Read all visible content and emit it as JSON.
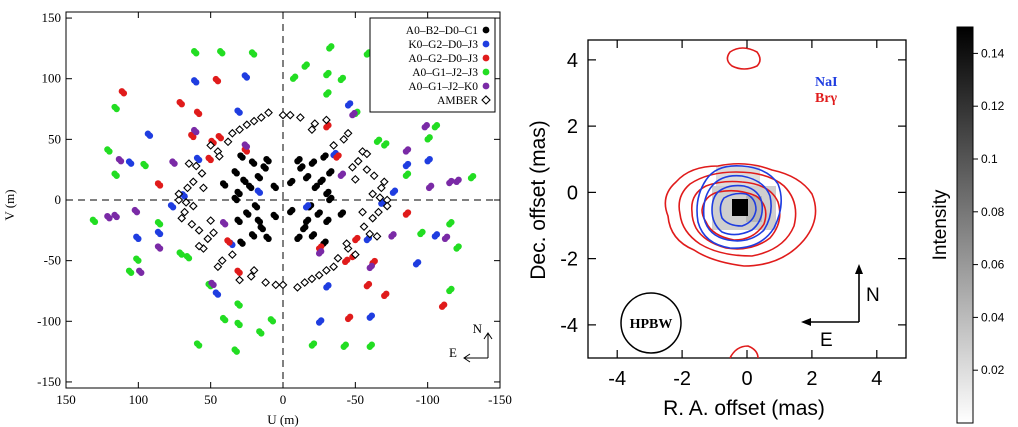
{
  "uv_plot": {
    "xlabel": "U (m)",
    "ylabel": "V (m)",
    "xlim": [
      150,
      -150
    ],
    "ylim": [
      -155,
      155
    ],
    "xticks": [
      150,
      100,
      50,
      0,
      -50,
      -100,
      -150
    ],
    "yticks": [
      150,
      100,
      50,
      0,
      -50,
      -100,
      -150
    ],
    "compass": {
      "north": "N",
      "east": "E"
    },
    "legend": [
      {
        "label": "A0–B2–D0–C1",
        "color": "#000000",
        "marker": "filled-circle"
      },
      {
        "label": "K0–G2–D0–J3",
        "color": "#1f3de0",
        "marker": "filled-circle"
      },
      {
        "label": "A0–G2–D0–J3",
        "color": "#e01b1b",
        "marker": "filled-circle"
      },
      {
        "label": "A0–G1–J2–J3",
        "color": "#22dd22",
        "marker": "filled-circle"
      },
      {
        "label": "A0–G1–J2–K0",
        "color": "#7a2aa6",
        "marker": "filled-circle"
      },
      {
        "label": "AMBER",
        "color": "#000000",
        "marker": "open-diamond"
      }
    ]
  },
  "chart_data": [
    {
      "type": "scatter",
      "xlabel": "U (m)",
      "ylabel": "V (m)",
      "xlim": [
        150,
        -150
      ],
      "ylim": [
        -155,
        155
      ],
      "series": [
        {
          "name": "A0–B2–D0–C1",
          "points": [
            [
              28,
              35
            ],
            [
              20,
              30
            ],
            [
              12,
              26
            ],
            [
              32,
              22
            ],
            [
              26,
              15
            ],
            [
              22,
              10
            ],
            [
              30,
              5
            ],
            [
              32,
              0
            ],
            [
              18,
              -6
            ],
            [
              24,
              -12
            ],
            [
              30,
              -18
            ],
            [
              14,
              -24
            ],
            [
              20,
              -30
            ],
            [
              28,
              -36
            ],
            [
              10,
              32
            ],
            [
              -10,
              32
            ],
            [
              -20,
              30
            ],
            [
              -28,
              35
            ],
            [
              -12,
              26
            ],
            [
              -32,
              22
            ],
            [
              -26,
              15
            ],
            [
              -22,
              10
            ],
            [
              -30,
              5
            ],
            [
              -32,
              0
            ],
            [
              -18,
              -6
            ],
            [
              -24,
              -12
            ],
            [
              -30,
              -18
            ],
            [
              -14,
              -24
            ],
            [
              -20,
              -30
            ],
            [
              -28,
              -36
            ],
            [
              -10,
              -32
            ],
            [
              10,
              -32
            ],
            [
              5,
              10
            ],
            [
              -5,
              -10
            ],
            [
              5,
              -14
            ],
            [
              -5,
              14
            ],
            [
              16,
              18
            ],
            [
              -16,
              -18
            ],
            [
              -16,
              18
            ],
            [
              16,
              -18
            ],
            [
              40,
              12
            ],
            [
              -40,
              -12
            ]
          ]
        },
        {
          "name": "K0–G2–D0–J3",
          "points": [
            [
              25,
              101
            ],
            [
              60,
              97
            ],
            [
              58,
              33
            ],
            [
              76,
              -6
            ],
            [
              35,
              -37
            ],
            [
              -35,
              37
            ],
            [
              -76,
              6
            ],
            [
              -58,
              -33
            ],
            [
              -60,
              -97
            ],
            [
              -25,
              -101
            ],
            [
              85,
              -28
            ],
            [
              -85,
              28
            ],
            [
              100,
              -32
            ],
            [
              -100,
              32
            ],
            [
              -45,
              78
            ],
            [
              45,
              -78
            ],
            [
              -30,
              -72
            ],
            [
              30,
              72
            ],
            [
              -68,
              -3
            ],
            [
              68,
              3
            ],
            [
              -16,
              -6
            ],
            [
              16,
              6
            ],
            [
              -92,
              -53
            ],
            [
              92,
              53
            ],
            [
              -105,
              -30
            ],
            [
              105,
              30
            ]
          ]
        },
        {
          "name": "A0–G2–D0–J3",
          "points": [
            [
              110,
              88
            ],
            [
              58,
              71
            ],
            [
              43,
              51
            ],
            [
              48,
              47
            ],
            [
              37,
              -35
            ],
            [
              30,
              -60
            ],
            [
              -30,
              60
            ],
            [
              -37,
              35
            ],
            [
              -48,
              -47
            ],
            [
              -43,
              -51
            ],
            [
              -58,
              -71
            ],
            [
              -110,
              -88
            ],
            [
              -70,
              -79
            ],
            [
              70,
              79
            ],
            [
              -62,
              -52
            ],
            [
              62,
              52
            ],
            [
              -45,
              -98
            ],
            [
              45,
              98
            ],
            [
              -50,
              -33
            ],
            [
              50,
              33
            ],
            [
              -85,
              -12
            ],
            [
              85,
              12
            ],
            [
              -25,
              -40
            ],
            [
              25,
              40
            ]
          ]
        },
        {
          "name": "A0–G1–J2–J3",
          "points": [
            [
              60,
              121
            ],
            [
              42,
              121
            ],
            [
              -7,
              100
            ],
            [
              -20,
              -120
            ],
            [
              115,
              75
            ],
            [
              120,
              40
            ],
            [
              115,
              20
            ],
            [
              85,
              -20
            ],
            [
              65,
              -48
            ],
            [
              50,
              -71
            ],
            [
              70,
              -45
            ],
            [
              40,
              -99
            ],
            [
              30,
              -103
            ],
            [
              -30,
              103
            ],
            [
              -40,
              99
            ],
            [
              -70,
              45
            ],
            [
              -50,
              71
            ],
            [
              -65,
              48
            ],
            [
              -85,
              20
            ],
            [
              -115,
              -20
            ],
            [
              -120,
              -40
            ],
            [
              -115,
              -75
            ],
            [
              -60,
              -121
            ],
            [
              -42,
              -121
            ],
            [
              20,
              120
            ],
            [
              7,
              -100
            ],
            [
              100,
              -50
            ],
            [
              -100,
              50
            ],
            [
              130,
              -18
            ],
            [
              -130,
              18
            ],
            [
              95,
              28
            ],
            [
              -95,
              -28
            ],
            [
              32,
              -125
            ],
            [
              -32,
              125
            ],
            [
              58,
              -120
            ],
            [
              -58,
              120
            ],
            [
              -15,
              110
            ],
            [
              15,
              -110
            ],
            [
              105,
              -60
            ],
            [
              -105,
              60
            ],
            [
              -30,
              87
            ],
            [
              30,
              -87
            ]
          ]
        },
        {
          "name": "A0–G1–J2–K0",
          "points": [
            [
              60,
              56
            ],
            [
              25,
              44
            ],
            [
              101,
              -10
            ],
            [
              98,
              -60
            ],
            [
              48,
              -70
            ],
            [
              -48,
              70
            ],
            [
              -98,
              60
            ],
            [
              -101,
              10
            ],
            [
              -25,
              -44
            ],
            [
              -60,
              -56
            ],
            [
              -75,
              -30
            ],
            [
              75,
              30
            ],
            [
              -85,
              40
            ],
            [
              85,
              -40
            ],
            [
              -115,
              14
            ],
            [
              115,
              -14
            ],
            [
              -40,
              20
            ],
            [
              40,
              -20
            ],
            [
              -112,
              -32
            ],
            [
              112,
              32
            ],
            [
              -120,
              15
            ],
            [
              120,
              -15
            ]
          ]
        },
        {
          "name": "AMBER",
          "points": [
            [
              -22,
              63
            ],
            [
              -42,
              50
            ],
            [
              -55,
              40
            ],
            [
              -63,
              20
            ],
            [
              -50,
              17
            ],
            [
              -58,
              25
            ],
            [
              -62,
              5
            ],
            [
              -72,
              0
            ],
            [
              -55,
              -10
            ],
            [
              -45,
              -40
            ],
            [
              -35,
              -55
            ],
            [
              -20,
              -65
            ],
            [
              22,
              -63
            ],
            [
              42,
              -50
            ],
            [
              55,
              -40
            ],
            [
              63,
              -20
            ],
            [
              50,
              -17
            ],
            [
              58,
              -25
            ],
            [
              62,
              -5
            ],
            [
              72,
              0
            ],
            [
              55,
              10
            ],
            [
              45,
              40
            ],
            [
              35,
              55
            ],
            [
              20,
              65
            ],
            [
              0,
              70
            ],
            [
              0,
              -70
            ],
            [
              -5,
              70
            ],
            [
              5,
              -70
            ],
            [
              -30,
              -58
            ],
            [
              30,
              58
            ],
            [
              -48,
              27
            ],
            [
              48,
              -27
            ],
            [
              -66,
              -10
            ],
            [
              66,
              10
            ],
            [
              -68,
              10
            ],
            [
              68,
              -10
            ],
            [
              -12,
              68
            ],
            [
              12,
              -68
            ],
            [
              -38,
              -48
            ],
            [
              38,
              48
            ],
            [
              -60,
              -28
            ],
            [
              60,
              28
            ],
            [
              -25,
              -62
            ],
            [
              25,
              62
            ],
            [
              -52,
              32
            ],
            [
              52,
              -32
            ],
            [
              -35,
              45
            ],
            [
              35,
              -45
            ],
            [
              -67,
              2
            ],
            [
              67,
              -2
            ],
            [
              -62,
              -15
            ],
            [
              62,
              15
            ],
            [
              -44,
              -36
            ],
            [
              44,
              36
            ],
            [
              -15,
              -68
            ],
            [
              15,
              68
            ],
            [
              -72,
              -5
            ],
            [
              72,
              5
            ],
            [
              -56,
              -22
            ],
            [
              56,
              22
            ],
            [
              -30,
              66
            ],
            [
              30,
              -66
            ],
            [
              -65,
              -30
            ],
            [
              65,
              30
            ],
            [
              -45,
              55
            ],
            [
              45,
              -55
            ],
            [
              -58,
              38
            ],
            [
              58,
              -38
            ],
            [
              -10,
              -72
            ],
            [
              10,
              72
            ],
            [
              -50,
              -45
            ],
            [
              50,
              45
            ],
            [
              -70,
              15
            ],
            [
              70,
              -15
            ],
            [
              -20,
              58
            ],
            [
              20,
              -58
            ]
          ]
        }
      ]
    },
    {
      "type": "contour",
      "xlabel": "R. A. offset (mas)",
      "ylabel": "Dec. offset (mas)",
      "xlim": [
        4.9,
        -4.9
      ],
      "ylim": [
        -5,
        4.6
      ],
      "xticks": [
        -4,
        -2,
        0,
        2,
        4
      ],
      "yticks": [
        4,
        2,
        0,
        -2,
        -4
      ],
      "legend": [
        {
          "label": "NaI",
          "color": "#1f3de0"
        },
        {
          "label": "Brγ",
          "color": "#e01b1b"
        }
      ],
      "hpbw_label": "HPBW",
      "compass": {
        "north": "N",
        "east": "E"
      }
    },
    {
      "type": "colorbar",
      "label": "Intensity",
      "range": [
        0,
        0.15
      ],
      "ticks": [
        0.14,
        0.12,
        0.1,
        0.08,
        0.06,
        0.04,
        0.02
      ]
    }
  ]
}
